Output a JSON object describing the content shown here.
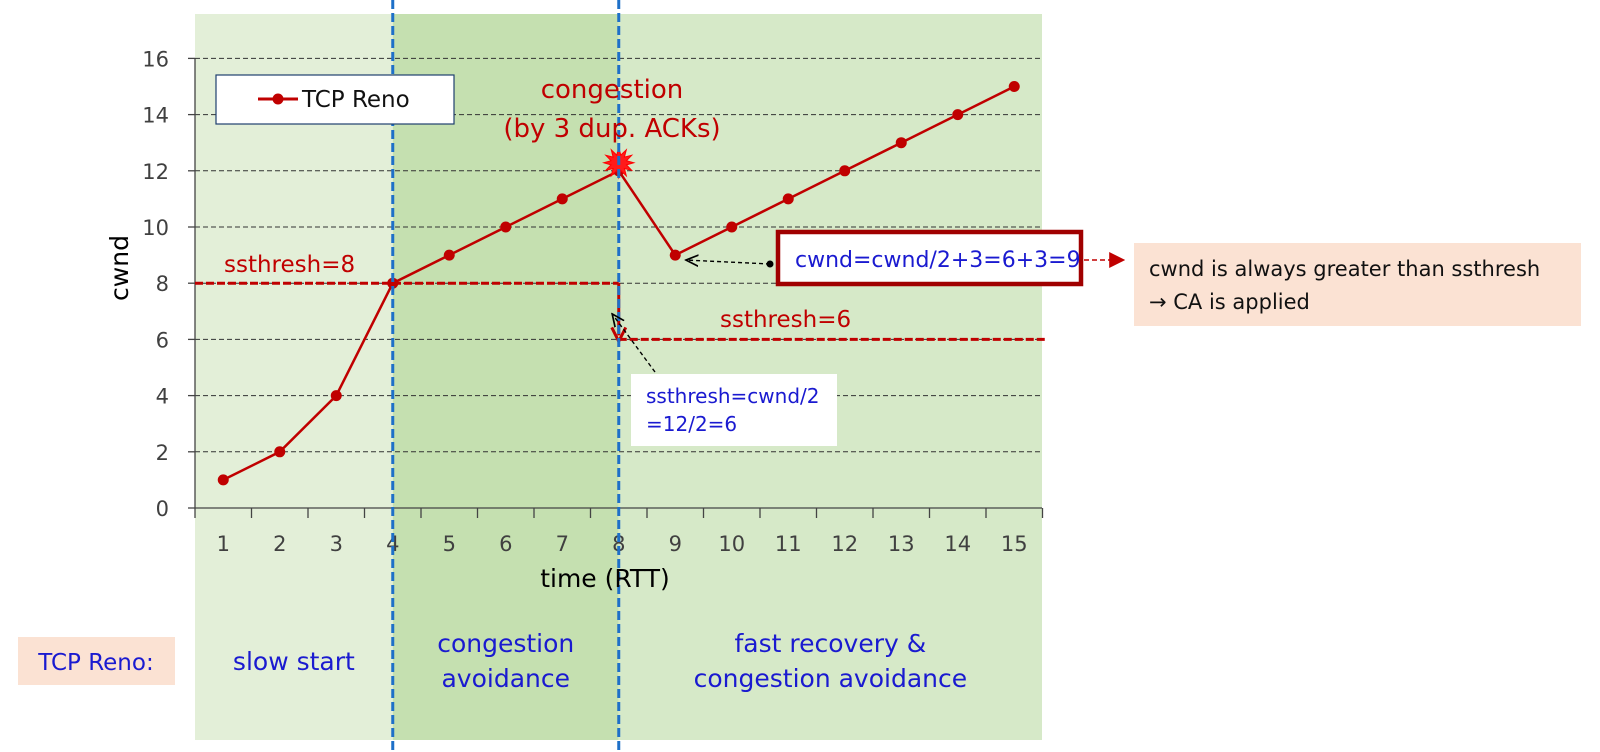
{
  "chart_data": {
    "type": "line",
    "xlabel": "time (RTT)",
    "ylabel": "cwnd",
    "ylim": [
      0,
      16
    ],
    "yticks": [
      "0",
      "2",
      "4",
      "6",
      "8",
      "10",
      "12",
      "14",
      "16"
    ],
    "xtick_labels": [
      "1",
      "2",
      "3",
      "4",
      "5",
      "6",
      "7",
      "8",
      "9",
      "10",
      "11",
      "12",
      "13",
      "14",
      "15"
    ],
    "grid": "horizontal dashed",
    "legend": {
      "position": "top-left",
      "entries": [
        "TCP Reno"
      ]
    },
    "series": [
      {
        "name": "TCP Reno",
        "color": "#c00000",
        "x": [
          1,
          2,
          3,
          4,
          5,
          6,
          7,
          8,
          9,
          10,
          11,
          12,
          13,
          14,
          15
        ],
        "values": [
          1,
          2,
          4,
          8,
          9,
          10,
          11,
          12,
          9,
          10,
          11,
          12,
          13,
          14,
          15
        ]
      }
    ],
    "thresholds": [
      {
        "label": "ssthresh=8",
        "value": 8,
        "x_range": [
          0.5,
          8
        ],
        "color": "#c00000"
      },
      {
        "label": "ssthresh=6",
        "value": 6,
        "x_range": [
          8,
          15.5
        ],
        "color": "#c00000"
      }
    ],
    "phase_dividers_x": [
      4,
      8
    ],
    "phases": [
      {
        "label": "slow start",
        "x_range": [
          0.5,
          4
        ]
      },
      {
        "label": "congestion\navoidance",
        "x_range": [
          4,
          8
        ]
      },
      {
        "label": "fast recovery &\ncongestion avoidance",
        "x_range": [
          8,
          15.5
        ]
      }
    ],
    "annotations": {
      "congestion_line1": "congestion",
      "congestion_line2": "(by 3 dup. ACKs)",
      "ssthresh_calc_line1": "ssthresh=cwnd/2",
      "ssthresh_calc_line2": "=12/2=6",
      "cwnd_calc": "cwnd=cwnd/2+3=6+3=9",
      "note_line1": "cwnd is always greater than ssthresh",
      "note_line2": "→ CA is applied",
      "row_label": "TCP Reno:"
    },
    "colors": {
      "series": "#c00000",
      "phase_light": "#e3efd8",
      "phase_mid": "#c5e0b0",
      "phase_right": "#d6e9c8",
      "divider": "#1e70c8",
      "note_bg": "#fbe2d3",
      "blue_text": "#1a1ad0"
    }
  }
}
